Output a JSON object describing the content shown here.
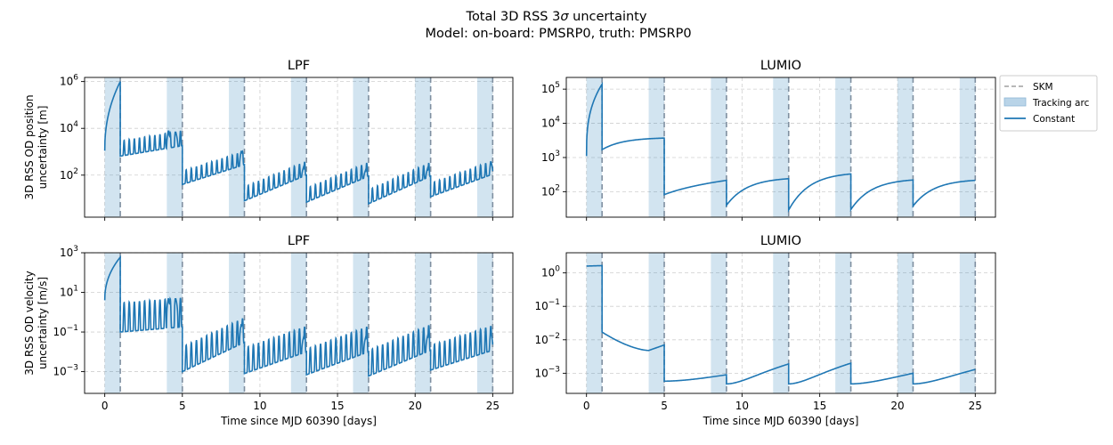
{
  "figure": {
    "title_line1": "Total 3D RSS 3",
    "title_sigma": "σ",
    "title_line1_end": " uncertainty",
    "title_line2": "Model: on-board: PMSRP0, truth: PMSRP0"
  },
  "legend": {
    "placement": "outside right of top-right panel",
    "items": [
      {
        "label": "SKM",
        "style": "dashed-line",
        "color": "#a0a0a0"
      },
      {
        "label": "Tracking arc",
        "style": "patch",
        "color": "#b9d4e8"
      },
      {
        "label": "Constant",
        "style": "line",
        "color": "#1f77b4"
      }
    ]
  },
  "colors": {
    "series": "#1f77b4",
    "tracking_fill": "#1f77b4",
    "skm_line": "#7f8fa0",
    "grid": "#d0d0d0"
  },
  "chart_data": [
    {
      "type": "line",
      "panel": "top-left",
      "title": "LPF",
      "ylabel_line1": "3D RSS OD position",
      "ylabel_line2": "uncertainty [m]",
      "xlabel": "",
      "yscale": "log",
      "xlim": [
        -1.3,
        26.3
      ],
      "ylim": [
        1.6,
        1500000
      ],
      "xticks": [
        0,
        5,
        10,
        15,
        20,
        25
      ],
      "yticks": [
        {
          "v": 100,
          "label": "10",
          "exp": "2"
        },
        {
          "v": 10000,
          "label": "10",
          "exp": "4"
        },
        {
          "v": 1000000,
          "label": "10",
          "exp": "6"
        }
      ],
      "show_xticklabels": false,
      "grid": true,
      "tracking_arcs": [
        [
          0,
          1
        ],
        [
          4,
          5
        ],
        [
          8,
          9
        ],
        [
          12,
          13
        ],
        [
          16,
          17
        ],
        [
          20,
          21
        ],
        [
          24,
          25
        ]
      ],
      "skm_days": [
        1,
        5,
        9,
        13,
        17,
        21,
        25
      ],
      "segments": [
        {
          "mode": "ramp",
          "t0": 0,
          "t1": 1,
          "v0": 1100,
          "v1": 1000000
        },
        {
          "mode": "osc",
          "t0": 1,
          "t1": 5,
          "v0": 650,
          "v1": 1800,
          "amp": 4.5,
          "per": 0.33,
          "peaks": [
            [
              4.1,
              8000
            ],
            [
              4.6,
              6000
            ]
          ]
        },
        {
          "mode": "osc",
          "t0": 5,
          "t1": 9,
          "v0": 40,
          "v1": 280,
          "amp": 3.8,
          "per": 0.33,
          "peaks": [
            [
              8.8,
              1100
            ]
          ]
        },
        {
          "mode": "osc",
          "t0": 9,
          "t1": 13,
          "v0": 8,
          "v1": 100,
          "amp": 4,
          "per": 0.33,
          "peaks": [
            [
              12.8,
              210
            ]
          ]
        },
        {
          "mode": "osc",
          "t0": 13,
          "t1": 17,
          "v0": 7,
          "v1": 90,
          "amp": 4,
          "per": 0.33,
          "peaks": [
            [
              16.8,
              160
            ]
          ]
        },
        {
          "mode": "osc",
          "t0": 17,
          "t1": 21,
          "v0": 6,
          "v1": 90,
          "amp": 4,
          "per": 0.33,
          "peaks": [
            [
              20.8,
              190
            ]
          ]
        },
        {
          "mode": "osc",
          "t0": 21,
          "t1": 25,
          "v0": 12,
          "v1": 110,
          "amp": 3.8,
          "per": 0.33,
          "peaks": [
            [
              24.9,
              350
            ]
          ]
        }
      ]
    },
    {
      "type": "line",
      "panel": "top-right",
      "title": "LUMIO",
      "ylabel_line1": "",
      "ylabel_line2": "",
      "xlabel": "",
      "yscale": "log",
      "xlim": [
        -1.3,
        26.3
      ],
      "ylim": [
        18,
        220000
      ],
      "xticks": [
        0,
        5,
        10,
        15,
        20,
        25
      ],
      "yticks": [
        {
          "v": 100,
          "label": "10",
          "exp": "2"
        },
        {
          "v": 1000,
          "label": "10",
          "exp": "3"
        },
        {
          "v": 10000,
          "label": "10",
          "exp": "4"
        },
        {
          "v": 100000,
          "label": "10",
          "exp": "5"
        }
      ],
      "show_xticklabels": false,
      "grid": true,
      "tracking_arcs": [
        [
          0,
          1
        ],
        [
          4,
          5
        ],
        [
          8,
          9
        ],
        [
          12,
          13
        ],
        [
          16,
          17
        ],
        [
          20,
          21
        ],
        [
          24,
          25
        ]
      ],
      "skm_days": [
        1,
        5,
        9,
        13,
        17,
        21,
        25
      ],
      "segments": [
        {
          "mode": "sqrt",
          "t0": 0,
          "t1": 1,
          "v0": 1100,
          "v1": 140000
        },
        {
          "mode": "sat",
          "t0": 1,
          "t1": 5,
          "v0": 1700,
          "v1": 3700
        },
        {
          "mode": "lin",
          "t0": 5,
          "t1": 9,
          "v0": 82,
          "v1": 215
        },
        {
          "mode": "sat",
          "t0": 9,
          "t1": 13,
          "v0": 40,
          "v1": 240
        },
        {
          "mode": "sat",
          "t0": 13,
          "t1": 17,
          "v0": 29,
          "v1": 330
        },
        {
          "mode": "sat",
          "t0": 17,
          "t1": 21,
          "v0": 30,
          "v1": 220
        },
        {
          "mode": "sat",
          "t0": 21,
          "t1": 25,
          "v0": 38,
          "v1": 215
        }
      ]
    },
    {
      "type": "line",
      "panel": "bottom-left",
      "title": "LPF",
      "ylabel_line1": "3D RSS OD velocity",
      "ylabel_line2": "uncertainty [m/s]",
      "xlabel": "Time since MJD 60390 [days]",
      "yscale": "log",
      "xlim": [
        -1.3,
        26.3
      ],
      "ylim": [
        8e-05,
        1000
      ],
      "xticks": [
        0,
        5,
        10,
        15,
        20,
        25
      ],
      "yticks": [
        {
          "v": 0.001,
          "label": "10",
          "exp": "−3"
        },
        {
          "v": 0.1,
          "label": "10",
          "exp": "−1"
        },
        {
          "v": 10,
          "label": "10",
          "exp": "1"
        },
        {
          "v": 1000,
          "label": "10",
          "exp": "3"
        }
      ],
      "show_xticklabels": true,
      "grid": true,
      "tracking_arcs": [
        [
          0,
          1
        ],
        [
          4,
          5
        ],
        [
          8,
          9
        ],
        [
          12,
          13
        ],
        [
          16,
          17
        ],
        [
          20,
          21
        ],
        [
          24,
          25
        ]
      ],
      "skm_days": [
        1,
        5,
        9,
        13,
        17,
        21,
        25
      ],
      "segments": [
        {
          "mode": "ramp",
          "t0": 0,
          "t1": 1,
          "v0": 4,
          "v1": 600
        },
        {
          "mode": "osc",
          "t0": 1,
          "t1": 5,
          "v0": 0.1,
          "v1": 0.18,
          "amp": 30,
          "per": 0.33,
          "peaks": [
            [
              4.1,
              5
            ],
            [
              4.6,
              4
            ]
          ]
        },
        {
          "mode": "osc",
          "t0": 5,
          "t1": 9,
          "v0": 0.001,
          "v1": 0.03,
          "amp": 18,
          "per": 0.33,
          "peaks": [
            [
              8.8,
              0.25
            ]
          ]
        },
        {
          "mode": "osc",
          "t0": 9,
          "t1": 13,
          "v0": 0.0008,
          "v1": 0.01,
          "amp": 20,
          "per": 0.33,
          "peaks": [
            [
              12.8,
              0.05
            ]
          ]
        },
        {
          "mode": "osc",
          "t0": 13,
          "t1": 17,
          "v0": 0.0007,
          "v1": 0.01,
          "amp": 20,
          "per": 0.33,
          "peaks": [
            [
              16.8,
              0.05
            ]
          ]
        },
        {
          "mode": "osc",
          "t0": 17,
          "t1": 21,
          "v0": 0.0006,
          "v1": 0.012,
          "amp": 20,
          "per": 0.33,
          "peaks": [
            [
              20.8,
              0.06
            ]
          ]
        },
        {
          "mode": "osc",
          "t0": 21,
          "t1": 25,
          "v0": 0.0012,
          "v1": 0.012,
          "amp": 18,
          "per": 0.33,
          "peaks": [
            [
              24.9,
              0.08
            ]
          ]
        }
      ]
    },
    {
      "type": "line",
      "panel": "bottom-right",
      "title": "LUMIO",
      "ylabel_line1": "",
      "ylabel_line2": "",
      "xlabel": "Time since MJD 60390 [days]",
      "yscale": "log",
      "xlim": [
        -1.3,
        26.3
      ],
      "ylim": [
        0.00025,
        4
      ],
      "xticks": [
        0,
        5,
        10,
        15,
        20,
        25
      ],
      "yticks": [
        {
          "v": 0.001,
          "label": "10",
          "exp": "−3"
        },
        {
          "v": 0.01,
          "label": "10",
          "exp": "−2"
        },
        {
          "v": 0.1,
          "label": "10",
          "exp": "−1"
        },
        {
          "v": 1,
          "label": "10",
          "exp": "0"
        }
      ],
      "show_xticklabels": true,
      "grid": true,
      "tracking_arcs": [
        [
          0,
          1
        ],
        [
          4,
          5
        ],
        [
          8,
          9
        ],
        [
          12,
          13
        ],
        [
          16,
          17
        ],
        [
          20,
          21
        ],
        [
          24,
          25
        ]
      ],
      "skm_days": [
        1,
        5,
        9,
        13,
        17,
        21,
        25
      ],
      "segments": [
        {
          "mode": "lin",
          "t0": 0,
          "t1": 1,
          "v0": 1.6,
          "v1": 1.65
        },
        {
          "mode": "dip",
          "t0": 1,
          "t1": 5,
          "v0": 0.017,
          "vmin": 0.0048,
          "tmin": 4.0,
          "v1": 0.007
        },
        {
          "mode": "grow",
          "t0": 5,
          "t1": 9,
          "v0": 0.00058,
          "v1": 0.0009
        },
        {
          "mode": "grow",
          "t0": 9,
          "t1": 13,
          "v0": 0.00048,
          "v1": 0.0019
        },
        {
          "mode": "grow",
          "t0": 13,
          "t1": 17,
          "v0": 0.00048,
          "v1": 0.002
        },
        {
          "mode": "grow",
          "t0": 17,
          "t1": 21,
          "v0": 0.00048,
          "v1": 0.001
        },
        {
          "mode": "grow",
          "t0": 21,
          "t1": 25,
          "v0": 0.00048,
          "v1": 0.0013
        }
      ]
    }
  ]
}
